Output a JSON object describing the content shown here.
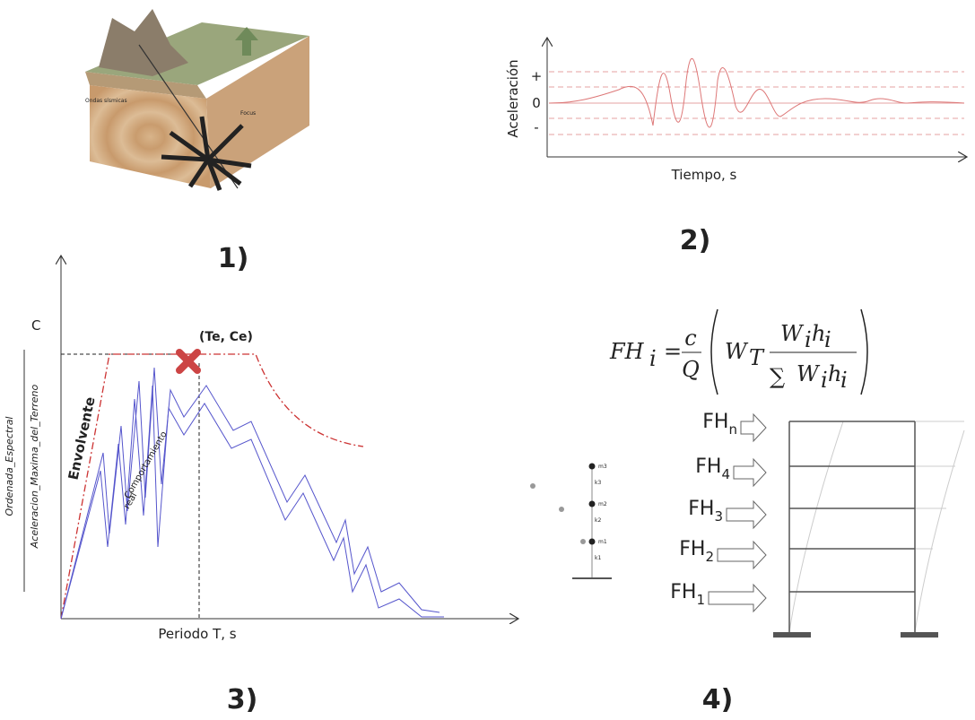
{
  "panels": [
    {
      "number": "1)",
      "labels": [
        "Ondas sísmicas",
        "Focus"
      ]
    },
    {
      "number": "2)",
      "y_label": "Aceleración",
      "x_label": "Tiempo, s",
      "levels": [
        "+",
        "0",
        "-"
      ]
    },
    {
      "number": "3)",
      "y_label": "C",
      "point": "(Te, Ce)",
      "envelope": "Envolvente",
      "real": [
        "Comportamiento",
        "real"
      ],
      "ratio_num": "Ordenada_Espectral",
      "ratio_den": "Aceleracion_Maxima_del_Terreno",
      "x_label": "Periodo T,  s"
    },
    {
      "number": "4)",
      "formula": {
        "lhs": "FH",
        "lhs_sub": "i",
        "equals": "=",
        "c": "c",
        "q": "Q",
        "wt": "W",
        "wt_sub": "T",
        "num_w": "W",
        "num_w_sub": "i",
        "num_h": "h",
        "num_h_sub": "i",
        "sum": "∑",
        "den_w": "W",
        "den_w_sub": "i",
        "den_h": "h",
        "den_h_sub": "i"
      },
      "forces": [
        {
          "base": "FH",
          "sub": "n"
        },
        {
          "base": "FH",
          "sub": "4"
        },
        {
          "base": "FH",
          "sub": "3"
        },
        {
          "base": "FH",
          "sub": "2"
        },
        {
          "base": "FH",
          "sub": "1"
        }
      ],
      "model": [
        "m3",
        "k3",
        "m2",
        "k2",
        "m1",
        "k1"
      ]
    }
  ]
}
